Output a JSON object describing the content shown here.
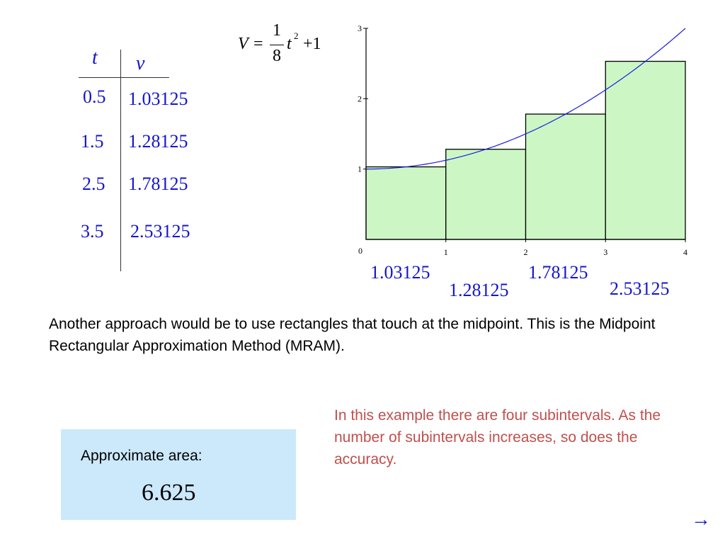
{
  "table": {
    "header_t": "t",
    "header_v": "v",
    "rows": [
      {
        "t": "0.5",
        "v": "1.03125"
      },
      {
        "t": "1.5",
        "v": "1.28125"
      },
      {
        "t": "2.5",
        "v": "1.78125"
      },
      {
        "t": "3.5",
        "v": "2.53125"
      }
    ]
  },
  "formula": {
    "lhs": "V",
    "equals": "=",
    "numerator": "1",
    "denominator": "8",
    "var": "t",
    "exponent": "2",
    "plus_const": "+1"
  },
  "chart_data": {
    "type": "bar",
    "x_ticks": [
      "0",
      "1",
      "2",
      "3",
      "4"
    ],
    "y_ticks": [
      "1",
      "2",
      "3"
    ],
    "xlim": [
      0,
      4
    ],
    "ylim": [
      0,
      3
    ],
    "bars": [
      {
        "x_start": 0,
        "x_end": 1,
        "value": 1.03125
      },
      {
        "x_start": 1,
        "x_end": 2,
        "value": 1.28125
      },
      {
        "x_start": 2,
        "x_end": 3,
        "value": 1.78125
      },
      {
        "x_start": 3,
        "x_end": 4,
        "value": 2.53125
      }
    ],
    "curve": {
      "equation": "V = (1/8) t^2 + 1",
      "color": "#1a1ae6"
    },
    "bar_labels": [
      "1.03125",
      "1.28125",
      "1.78125",
      "2.53125"
    ],
    "bar_fill": "#ccf7c4",
    "bar_stroke": "#000000"
  },
  "description": "Another approach would be to use rectangles that touch at the midpoint.  This is the Midpoint Rectangular Approximation Method (MRAM).",
  "note": "In this example there are four subintervals. As the number of subintervals increases, so does the accuracy.",
  "area": {
    "label": "Approximate area:",
    "value": "6.625"
  },
  "nav": {
    "next_icon": "→"
  }
}
